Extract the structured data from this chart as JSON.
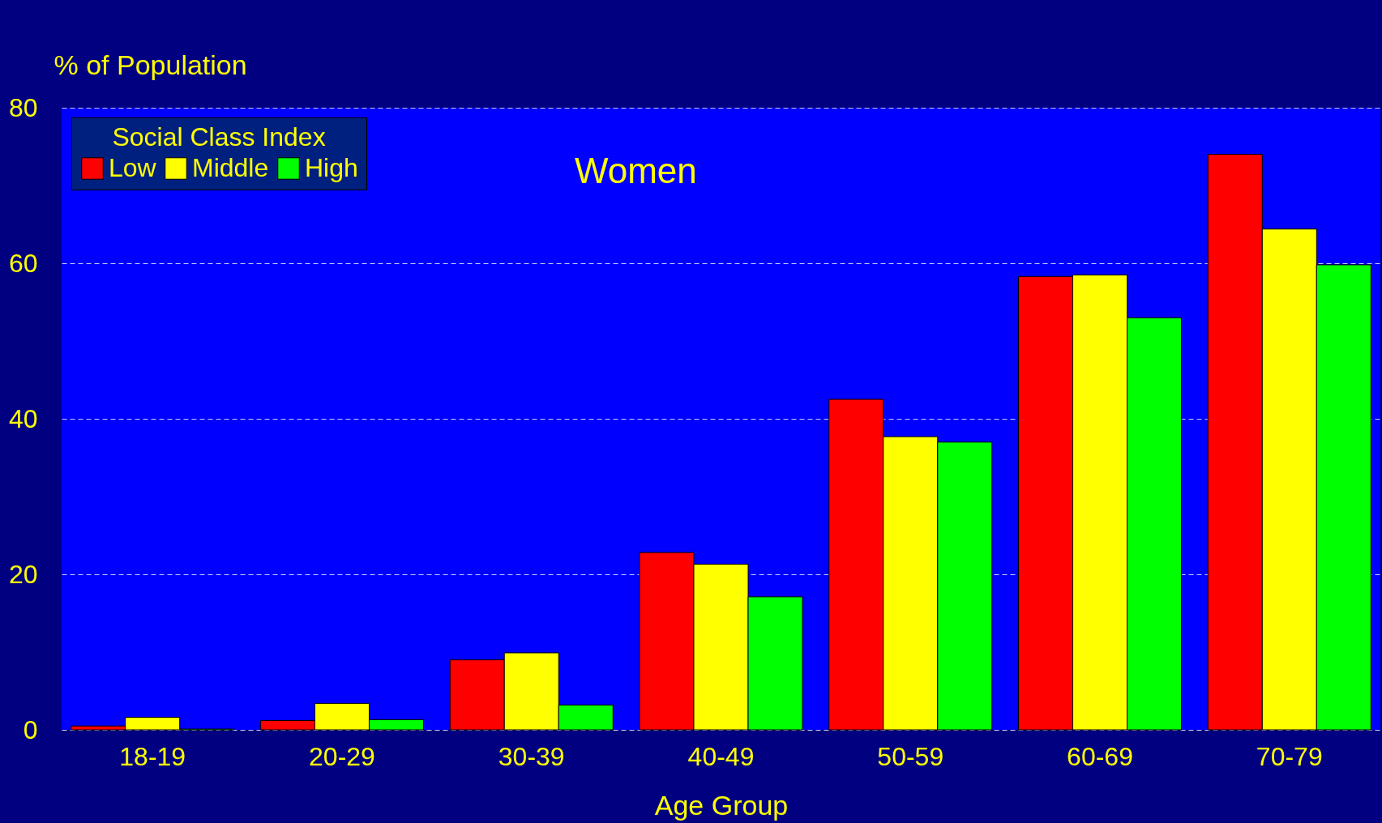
{
  "chart_data": {
    "type": "bar",
    "title": "Women",
    "xlabel": "Age Group",
    "ylabel": "% of Population",
    "legend_title": "Social Class Index",
    "categories": [
      "18-19",
      "20-29",
      "30-39",
      "40-49",
      "50-59",
      "60-69",
      "70-79"
    ],
    "series": [
      {
        "name": "Low",
        "color": "#ff0000",
        "values": [
          0.5,
          1.2,
          9.0,
          22.8,
          42.5,
          58.3,
          74.0
        ]
      },
      {
        "name": "Middle",
        "color": "#ffff00",
        "values": [
          1.6,
          3.4,
          9.9,
          21.3,
          37.7,
          58.5,
          64.4
        ]
      },
      {
        "name": "High",
        "color": "#00ff00",
        "values": [
          0.1,
          1.3,
          3.2,
          17.1,
          37.0,
          53.0,
          59.8
        ]
      }
    ],
    "ylim": [
      0,
      80
    ],
    "yticks": [
      0,
      20,
      40,
      60,
      80
    ],
    "grid": "y",
    "legend": "top left"
  }
}
